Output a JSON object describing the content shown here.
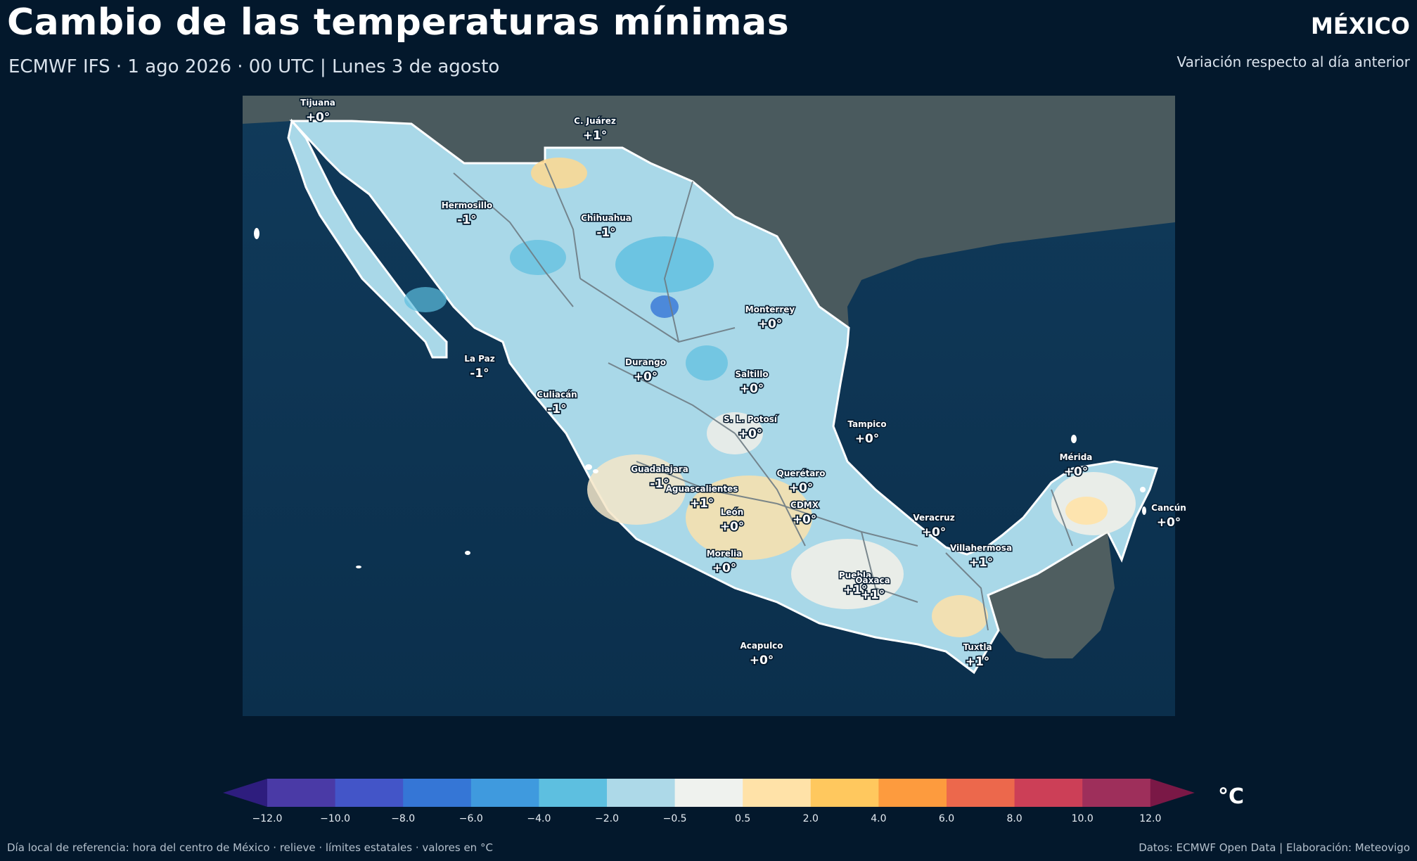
{
  "header": {
    "title": "Cambio de las temperaturas mínimas",
    "subtitle": "ECMWF IFS · 1 ago 2026 · 00 UTC  |  Lunes 3 de agosto",
    "region": "MÉXICO",
    "region_subtitle": "Variación respecto al día anterior"
  },
  "cities": [
    {
      "name": "Tijuana",
      "value": "+0°"
    },
    {
      "name": "C. Juárez",
      "value": "+1°"
    },
    {
      "name": "Hermosillo",
      "value": "-1°"
    },
    {
      "name": "Chihuahua",
      "value": "-1°"
    },
    {
      "name": "Monterrey",
      "value": "+0°"
    },
    {
      "name": "La Paz",
      "value": "-1°"
    },
    {
      "name": "Durango",
      "value": "+0°"
    },
    {
      "name": "Saltillo",
      "value": "+0°"
    },
    {
      "name": "Culiacán",
      "value": "-1°"
    },
    {
      "name": "S. L. Potosí",
      "value": "+0°"
    },
    {
      "name": "Tampico",
      "value": "+0°"
    },
    {
      "name": "Mérida",
      "value": "+0°"
    },
    {
      "name": "Guadalajara",
      "value": "-1°"
    },
    {
      "name": "Querétaro",
      "value": "+0°"
    },
    {
      "name": "Aguascalientes",
      "value": "+1°"
    },
    {
      "name": "CDMX",
      "value": "+0°"
    },
    {
      "name": "León",
      "value": "+0°"
    },
    {
      "name": "Cancún",
      "value": "+0°"
    },
    {
      "name": "Veracruz",
      "value": "+0°"
    },
    {
      "name": "Villahermosa",
      "value": "+1°"
    },
    {
      "name": "Morelia",
      "value": "+0°"
    },
    {
      "name": "Puebla",
      "value": "+1°"
    },
    {
      "name": "Oaxaca",
      "value": "+1°"
    },
    {
      "name": "Acapulco",
      "value": "+0°"
    },
    {
      "name": "Tuxtla",
      "value": "+1°"
    }
  ],
  "colorbar": {
    "unit": "°C",
    "ticks": [
      "−12.0",
      "−10.0",
      "−8.0",
      "−6.0",
      "−4.0",
      "−2.0",
      "−0.5",
      "0.5",
      "2.0",
      "4.0",
      "6.0",
      "8.0",
      "10.0",
      "12.0"
    ],
    "colors": [
      "#2e1d7e",
      "#4a3aa6",
      "#4355c8",
      "#3576d6",
      "#3f9ade",
      "#5dbfe0",
      "#add9e8",
      "#eff2ee",
      "#ffe2a8",
      "#ffc85e",
      "#fd9b3e",
      "#ec684c",
      "#cc3f57",
      "#9e2f5b",
      "#7a1846"
    ]
  },
  "footer": {
    "left": "Día local de referencia: hora del centro de México · relieve · límites estatales · valores en °C",
    "right": "Datos: ECMWF Open Data | Elaboración: Meteovigo"
  }
}
